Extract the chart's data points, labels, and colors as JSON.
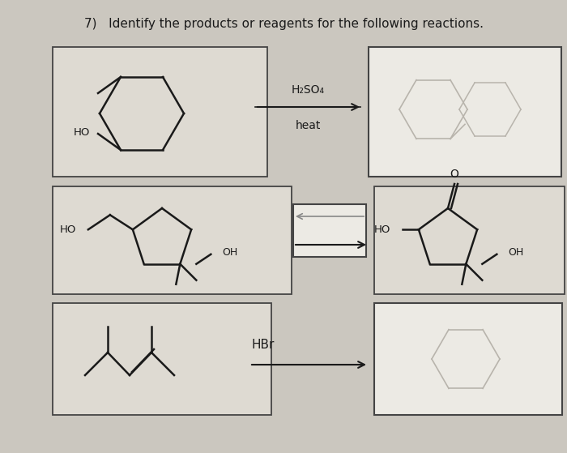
{
  "title": "7)   Identify the products or reagents for the following reactions.",
  "bg": "#cbc7bf",
  "box_face": "#dedad2",
  "ans_face": "#eceae4",
  "border": "#444444",
  "lc": "#1a1a1a",
  "faint": "#b8b4ac",
  "reagent1_top": "H₂SO₄",
  "reagent1_bot": "heat",
  "reagent3": "HBr",
  "title_fs": 11
}
